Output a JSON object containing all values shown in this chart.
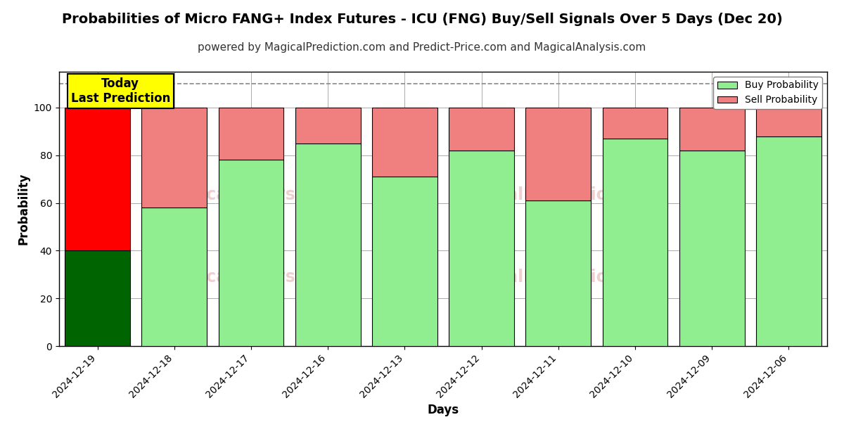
{
  "title": "Probabilities of Micro FANG+ Index Futures - ICU (FNG) Buy/Sell Signals Over 5 Days (Dec 20)",
  "subtitle": "powered by MagicalPrediction.com and Predict-Price.com and MagicalAnalysis.com",
  "xlabel": "Days",
  "ylabel": "Probability",
  "categories": [
    "2024-12-19",
    "2024-12-18",
    "2024-12-17",
    "2024-12-16",
    "2024-12-13",
    "2024-12-12",
    "2024-12-11",
    "2024-12-10",
    "2024-12-09",
    "2024-12-06"
  ],
  "buy_values": [
    40,
    58,
    78,
    85,
    71,
    82,
    61,
    87,
    82,
    88
  ],
  "sell_values": [
    60,
    42,
    22,
    15,
    29,
    18,
    39,
    13,
    18,
    12
  ],
  "buy_color_today": "#006400",
  "sell_color_today": "#ff0000",
  "buy_color_normal": "#90EE90",
  "sell_color_normal": "#F08080",
  "bar_edge_color": "#000000",
  "background_color": "#ffffff",
  "grid_color": "#aaaaaa",
  "ylim": [
    0,
    115
  ],
  "yticks": [
    0,
    20,
    40,
    60,
    80,
    100
  ],
  "dashed_line_y": 110,
  "legend_buy": "Buy Probability",
  "legend_sell": "Sell Probability",
  "title_fontsize": 14,
  "subtitle_fontsize": 11,
  "axis_label_fontsize": 12,
  "tick_fontsize": 10,
  "annotation_text": "Today\nLast Prediction"
}
